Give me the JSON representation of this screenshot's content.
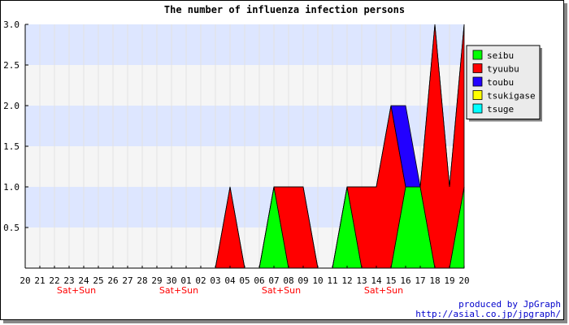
{
  "chart_data": {
    "type": "area",
    "stacked": true,
    "title": "The number of influenza infection persons",
    "x_labels": [
      "20",
      "21",
      "22",
      "23",
      "24",
      "25",
      "26",
      "27",
      "28",
      "29",
      "30",
      "01",
      "02",
      "03",
      "04",
      "05",
      "06",
      "07",
      "08",
      "09",
      "10",
      "11",
      "12",
      "13",
      "14",
      "15",
      "16",
      "17",
      "18",
      "19",
      "20"
    ],
    "weekend_marks": [
      {
        "at": "23-24",
        "label": "Sat+Sun"
      },
      {
        "at": "30-01",
        "label": "Sat+Sun"
      },
      {
        "at": "07-08",
        "label": "Sat+Sun"
      },
      {
        "at": "14-15",
        "label": "Sat+Sun"
      }
    ],
    "y_ticks": [
      "0.5",
      "1.0",
      "1.5",
      "2.0",
      "2.5",
      "3.0"
    ],
    "ylim": [
      0,
      3
    ],
    "series": [
      {
        "name": "seibu",
        "color": "#00ff00",
        "values": [
          0,
          0,
          0,
          0,
          0,
          0,
          0,
          0,
          0,
          0,
          0,
          0,
          0,
          0,
          0,
          0,
          0,
          1,
          0,
          0,
          0,
          0,
          1,
          0,
          0,
          0,
          1,
          1,
          0,
          0,
          1
        ]
      },
      {
        "name": "tyuubu",
        "color": "#ff0000",
        "values": [
          0,
          0,
          0,
          0,
          0,
          0,
          0,
          0,
          0,
          0,
          0,
          0,
          0,
          0,
          1,
          0,
          0,
          0,
          1,
          1,
          0,
          0,
          0,
          1,
          1,
          2,
          0,
          0,
          3,
          1,
          2
        ]
      },
      {
        "name": "toubu",
        "color": "#2200ff",
        "values": [
          0,
          0,
          0,
          0,
          0,
          0,
          0,
          0,
          0,
          0,
          0,
          0,
          0,
          0,
          0,
          0,
          0,
          0,
          0,
          0,
          0,
          0,
          0,
          0,
          0,
          0,
          1,
          0,
          0,
          0,
          0
        ]
      },
      {
        "name": "tsukigase",
        "color": "#ffff00",
        "values": [
          0,
          0,
          0,
          0,
          0,
          0,
          0,
          0,
          0,
          0,
          0,
          0,
          0,
          0,
          0,
          0,
          0,
          0,
          0,
          0,
          0,
          0,
          0,
          0,
          0,
          0,
          0,
          0,
          0,
          0,
          0
        ]
      },
      {
        "name": "tsuge",
        "color": "#00ffff",
        "values": [
          0,
          0,
          0,
          0,
          0,
          0,
          0,
          0,
          0,
          0,
          0,
          0,
          0,
          0,
          0,
          0,
          0,
          0,
          0,
          0,
          0,
          0,
          0,
          0,
          0,
          0,
          0,
          0,
          0,
          0,
          0
        ]
      }
    ],
    "background_bands": [
      "#f5f5f5",
      "#dde6ff"
    ],
    "grid": true,
    "legend_position": "right",
    "footer": [
      "produced by JpGraph",
      "http://asial.co.jp/jpgraph/"
    ]
  }
}
